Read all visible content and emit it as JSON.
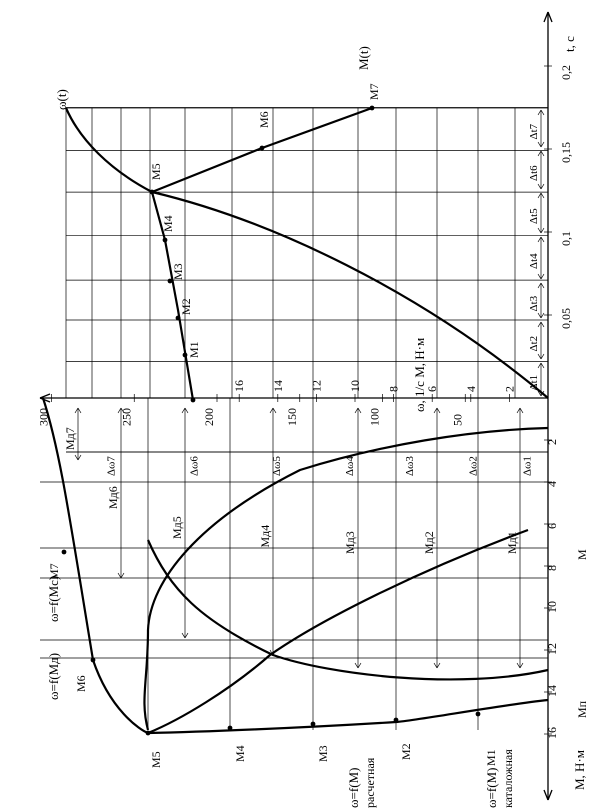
{
  "axes": {
    "t": "t, c",
    "omega_m": "ω, 1/c  M, Н·м",
    "m_bottom": "M, Н·м"
  },
  "t_ticks": [
    "0,05",
    "0,1",
    "0,15",
    "0,2"
  ],
  "m_bottom_ticks": [
    "2",
    "4",
    "6",
    "8",
    "10",
    "12",
    "14",
    "16"
  ],
  "omega_ticks": [
    "50",
    "100",
    "150",
    "200",
    "250",
    "300"
  ],
  "m_mid_ticks": [
    "2",
    "4",
    "6",
    "8",
    "10",
    "12",
    "14",
    "16"
  ],
  "delta_t": [
    "Δt1",
    "Δt2",
    "Δt3",
    "Δt4",
    "Δt5",
    "Δt6",
    "Δt7"
  ],
  "delta_omega": [
    "Δω1",
    "Δω2",
    "Δω3",
    "Δω4",
    "Δω5",
    "Δω6",
    "Δω7"
  ],
  "md": [
    "Mд1",
    "Mд2",
    "Mд3",
    "Mд4",
    "Mд5",
    "Mд6",
    "Mд7"
  ],
  "m_points_top": [
    "M1",
    "M2",
    "M3",
    "M4",
    "M5",
    "M6",
    "M7"
  ],
  "m_points_bottom": [
    "M1",
    "M2",
    "M3",
    "M4",
    "M5"
  ],
  "m6_bottom": "M6",
  "m7_bottom": "M7",
  "curves": {
    "omega_t": "ω(t)",
    "m_t": "M(t)",
    "omega_mc": "ω=f(Mc)",
    "omega_md": "ω=f(Mд)",
    "omega_calc": "ω=f(M)",
    "calc": "расчетная",
    "omega_cat": "ω=f(M)",
    "cat": "каталожная",
    "mp": "Mп",
    "m": "M"
  }
}
